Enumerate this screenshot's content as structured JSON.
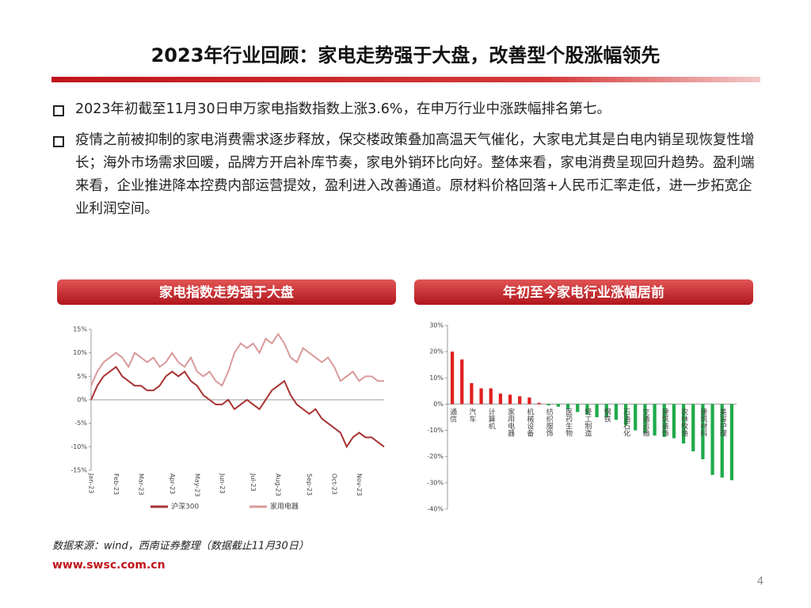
{
  "title": "2023年行业回顾：家电走势强于大盘，改善型个股涨幅领先",
  "bullets": [
    "2023年初截至11月30日申万家电指数指数上涨3.6%，在申万行业中涨跌幅排名第七。",
    "疫情之前被抑制的家电消费需求逐步释放，保交楼政策叠加高温天气催化，大家电尤其是白电内销呈现恢复性增长；海外市场需求回暖，品牌方开启补库节奏，家电外销环比向好。整体来看，家电消费呈现回升趋势。盈利端来看，企业推进降本控费内部运营提效，盈利进入改善通道。原材料价格回落+人民币汇率走低，进一步拓宽企业利润空间。"
  ],
  "source": "数据来源：wind，西南证券整理（数据截止11月30日）",
  "url": "www.swsc.com.cn",
  "page_number": 4,
  "chart_data": [
    {
      "type": "line",
      "title": "家电指数走势强于大盘",
      "categories": [
        "Jan-23",
        null,
        null,
        null,
        "Feb-23",
        null,
        null,
        null,
        "Mar-23",
        null,
        null,
        null,
        null,
        "Apr-23",
        null,
        null,
        null,
        "May-23",
        null,
        null,
        null,
        "Jun-23",
        null,
        null,
        null,
        null,
        "Jul-23",
        null,
        null,
        null,
        "Aug-23",
        null,
        null,
        null,
        null,
        "Sep-23",
        null,
        null,
        null,
        "Oct-23",
        null,
        null,
        null,
        "Nov-23",
        null,
        null,
        null,
        null
      ],
      "series": [
        {
          "name": "沪深300",
          "color": "#a83232",
          "values": [
            0,
            3,
            5,
            6,
            7,
            5,
            4,
            3,
            3,
            2,
            2,
            3,
            5,
            6,
            5,
            6,
            4,
            3,
            1,
            0,
            -1,
            -1,
            0,
            -2,
            -1,
            0,
            -1,
            -2,
            0,
            2,
            3,
            4,
            1,
            -1,
            -2,
            -3,
            -2,
            -4,
            -5,
            -6,
            -7,
            -10,
            -8,
            -7,
            -8,
            -8,
            -9,
            -10
          ]
        },
        {
          "name": "家用电器",
          "color": "#d99a9a",
          "values": [
            3,
            6,
            8,
            9,
            10,
            9,
            7,
            10,
            9,
            8,
            9,
            7,
            8,
            10,
            8,
            7,
            9,
            6,
            5,
            6,
            4,
            3,
            6,
            10,
            12,
            11,
            12,
            10,
            13,
            12,
            14,
            12,
            9,
            8,
            11,
            10,
            9,
            8,
            9,
            7,
            4,
            5,
            6,
            4,
            5,
            5,
            4,
            4
          ]
        }
      ],
      "ylim": [
        -15,
        15
      ],
      "yticks": [
        {
          "value": -15,
          "label": "-15%"
        },
        {
          "value": -10,
          "label": "-10%"
        },
        {
          "value": -5,
          "label": "-5%"
        },
        {
          "value": 0,
          "label": "0%"
        },
        {
          "value": 5,
          "label": "5%"
        },
        {
          "value": 10,
          "label": "10%"
        },
        {
          "value": 15,
          "label": "15%"
        }
      ],
      "legend": "bottom"
    },
    {
      "type": "bar",
      "title": "年初至今家电行业涨幅居前",
      "categories": [
        "通信",
        null,
        "汽车",
        null,
        "计算机",
        null,
        "家用电器",
        null,
        "机械设备",
        null,
        "纺织服饰",
        null,
        "医药生物",
        null,
        "轻工制造",
        null,
        "钢铁",
        null,
        "石油石化",
        null,
        "交通运输",
        null,
        "建筑装饰",
        null,
        "农林牧渔",
        null,
        "建筑材料",
        null,
        "美容护理",
        null
      ],
      "values": [
        20,
        17,
        8,
        6,
        6,
        4,
        3.6,
        3,
        2.5,
        0.5,
        -0.5,
        -1,
        -2,
        -3,
        -4,
        -5,
        -5,
        -6,
        -8,
        -10,
        -11,
        -12,
        -12.5,
        -13,
        -15,
        -18,
        -21,
        -27,
        -28,
        -29
      ],
      "positive_color": "#e02020",
      "negative_color": "#1faa4a",
      "ylim": [
        -40,
        30
      ],
      "yticks": [
        {
          "value": -40,
          "label": "-40%"
        },
        {
          "value": -30,
          "label": "-30%"
        },
        {
          "value": -20,
          "label": "-20%"
        },
        {
          "value": -10,
          "label": "-10%"
        },
        {
          "value": 0,
          "label": "0%"
        },
        {
          "value": 10,
          "label": "10%"
        },
        {
          "value": 20,
          "label": "20%"
        },
        {
          "value": 30,
          "label": "30%"
        }
      ]
    }
  ]
}
